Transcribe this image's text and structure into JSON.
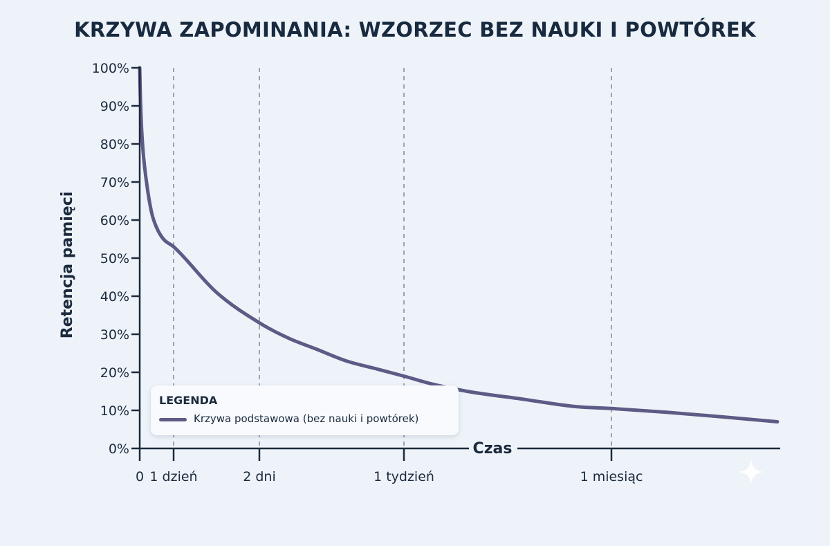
{
  "chart_data": {
    "type": "line",
    "title": "KRZYWA ZAPOMINANIA: WZORZEC BEZ NAUKI I POWTÓREK",
    "xlabel": "Czas",
    "ylabel": "Retencja pamięci",
    "y_ticks": [
      "0%",
      "10%",
      "20%",
      "30%",
      "40%",
      "50%",
      "60%",
      "70%",
      "80%",
      "90%",
      "100%"
    ],
    "ylim": [
      0,
      100
    ],
    "x_ticks": [
      {
        "label": "0",
        "days": 0
      },
      {
        "label": "1 dzień",
        "days": 1
      },
      {
        "label": "2 dni",
        "days": 2
      },
      {
        "label": "1 tydzień",
        "days": 7
      },
      {
        "label": "1 miesiąc",
        "days": 30
      }
    ],
    "x_scale": "nonlinear (ticks spaced unevenly)",
    "grid": "vertical dashed lines at x ticks",
    "legend": {
      "title": "LEGENDA",
      "placement": "bottom-left"
    },
    "series": [
      {
        "name": "Krzywa podstawowa (bez nauki i powtórek)",
        "color": "#5d5b86",
        "x": [
          0,
          0.02,
          0.05,
          0.1,
          0.2,
          0.35,
          0.5,
          0.7,
          1,
          1.5,
          2,
          3,
          4,
          5,
          6,
          7,
          10,
          14,
          20,
          26,
          30,
          36,
          42,
          48
        ],
        "y": [
          100,
          92,
          85,
          78,
          70,
          62,
          58,
          55,
          53,
          41,
          33,
          29,
          26,
          23,
          21,
          19,
          17,
          15,
          13,
          11,
          10.5,
          9.5,
          8.3,
          7
        ]
      }
    ]
  }
}
